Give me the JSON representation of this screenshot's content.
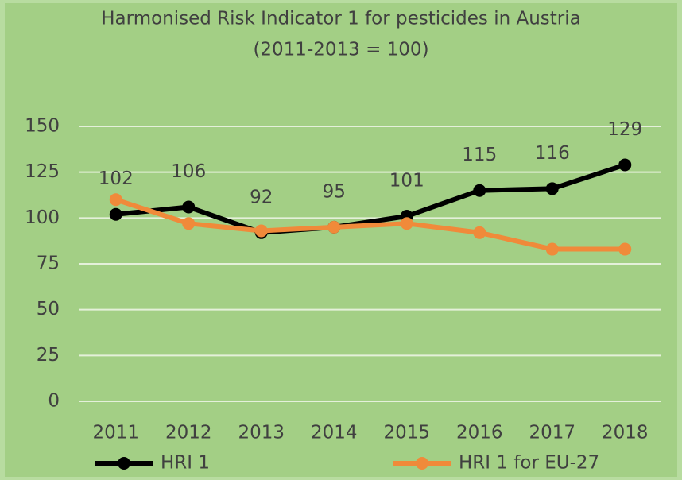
{
  "chart_data": {
    "type": "line",
    "title": "Harmonised Risk Indicator 1 for pesticides in Austria",
    "subtitle": "(2011-2013 = 100)",
    "categories": [
      "2011",
      "2012",
      "2013",
      "2014",
      "2015",
      "2016",
      "2017",
      "2018"
    ],
    "series": [
      {
        "name": "HRI 1",
        "color": "#000000",
        "values": [
          102,
          106,
          92,
          95,
          101,
          115,
          116,
          129
        ],
        "data_labels": true
      },
      {
        "name": "HRI 1 for EU-27",
        "color": "#f08a3a",
        "values": [
          110,
          97,
          93,
          95,
          97,
          92,
          83,
          83
        ],
        "data_labels": false
      }
    ],
    "ylim": [
      0,
      150
    ],
    "yticks": [
      0,
      25,
      50,
      75,
      100,
      125,
      150
    ],
    "grid": true,
    "legend": "bottom"
  }
}
